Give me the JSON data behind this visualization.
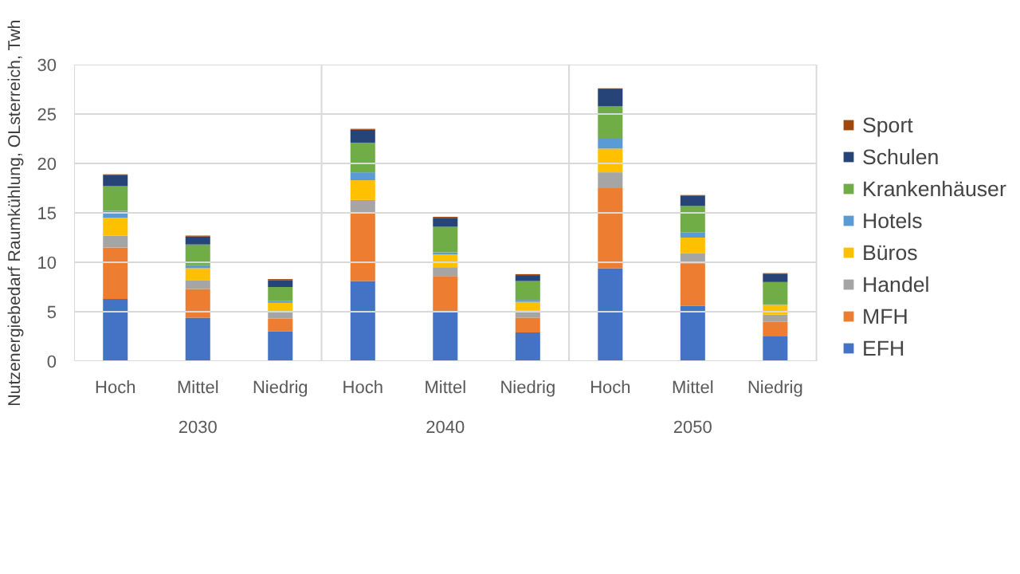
{
  "chart_data": {
    "type": "bar",
    "stacked": true,
    "ylabel": "Nutzenergiebedarf Raumkühlung, OLsterreich, Twh",
    "categories": [
      "Hoch",
      "Mittel",
      "Niedrig",
      "Hoch",
      "Mittel",
      "Niedrig",
      "Hoch",
      "Mittel",
      "Niedrig"
    ],
    "annotations": [
      "2030",
      "2040",
      "2050"
    ],
    "ylim": [
      0,
      30
    ],
    "yticks": [
      0,
      5,
      10,
      15,
      20,
      25,
      30
    ],
    "grid": "y",
    "legend": "right",
    "series": [
      {
        "name": "EFH",
        "color": "#4472c4",
        "values": [
          6.3,
          4.4,
          3.0,
          8.1,
          5.0,
          2.9,
          9.4,
          5.6,
          2.5
        ]
      },
      {
        "name": "MFH",
        "color": "#ed7d31",
        "values": [
          5.2,
          2.9,
          1.3,
          6.9,
          3.6,
          1.5,
          8.1,
          4.3,
          1.5
        ]
      },
      {
        "name": "Handel",
        "color": "#a5a5a5",
        "values": [
          1.2,
          0.9,
          0.7,
          1.3,
          0.9,
          0.7,
          1.6,
          1.0,
          0.7
        ]
      },
      {
        "name": "Büros",
        "color": "#ffc000",
        "values": [
          1.8,
          1.2,
          0.9,
          2.0,
          1.3,
          0.9,
          2.4,
          1.6,
          1.0
        ]
      },
      {
        "name": "Hotels",
        "color": "#5b9bd5",
        "values": [
          0.7,
          0.3,
          0.2,
          0.8,
          0.2,
          0.2,
          1.0,
          0.5,
          0.1
        ]
      },
      {
        "name": "Krankenhäuser",
        "color": "#70ad47",
        "values": [
          2.5,
          2.1,
          1.4,
          3.0,
          2.6,
          1.9,
          3.3,
          2.7,
          2.2
        ]
      },
      {
        "name": "Schulen",
        "color": "#264478",
        "values": [
          1.1,
          0.8,
          0.7,
          1.3,
          0.9,
          0.6,
          1.7,
          1.0,
          0.8
        ]
      },
      {
        "name": "Sport",
        "color": "#9e480e",
        "values": [
          0.1,
          0.1,
          0.1,
          0.1,
          0.1,
          0.1,
          0.1,
          0.1,
          0.1
        ]
      }
    ]
  }
}
